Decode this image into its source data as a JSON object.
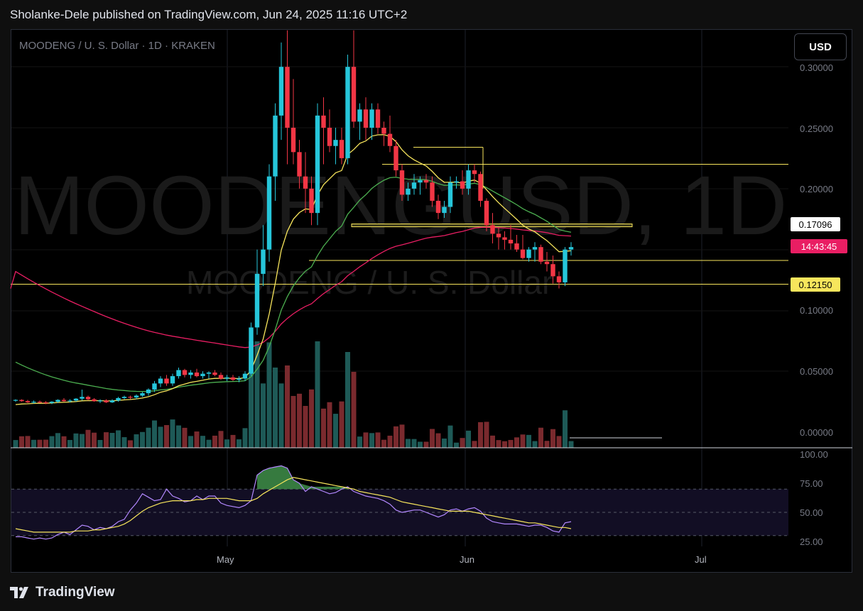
{
  "header": {
    "publish_line": "Sholanke-Dele published on TradingView.com, Jun 24, 2025 11:16 UTC+2"
  },
  "symbol_line": "MOODENG / U. S. Dollar · 1D · KRAKEN",
  "watermark": {
    "big": "MOODENGUSD, 1D",
    "small": "MOODENG / U. S. Dollar"
  },
  "currency_button": "USD",
  "price_axis": {
    "ticks": [
      "0.30000",
      "0.25000",
      "0.20000",
      "0.10000",
      "0.05000",
      "0.00000"
    ]
  },
  "price_labels": {
    "ma_value": "0.17096",
    "countdown": "14:43:45",
    "level": "0.12150"
  },
  "rsi_axis": {
    "ticks": [
      "100.00",
      "75.00",
      "50.00",
      "25.00"
    ]
  },
  "time_axis": {
    "ticks": [
      "May",
      "Jun",
      "Jul"
    ]
  },
  "brand": {
    "name": "TradingView"
  },
  "colors": {
    "up": "#26c6da",
    "down": "#f23645",
    "ma_yellow": "#f7e55c",
    "ma_green": "#4caf50",
    "ma_red": "#e91e63",
    "rsi": "#b388ff",
    "rsi_ma": "#f7e55c",
    "label_white": "#ffffff",
    "label_pink": "#e91e63",
    "label_yellow": "#f7e55c"
  },
  "chart_data": {
    "type": "candlestick",
    "symbol": "MOODENG / U. S. Dollar",
    "interval": "1D",
    "exchange": "KRAKEN",
    "ylim": [
      0,
      0.32
    ],
    "candles": [
      [
        0.026,
        0.027,
        0.025,
        0.0265
      ],
      [
        0.0265,
        0.027,
        0.025,
        0.0255
      ],
      [
        0.0255,
        0.0265,
        0.024,
        0.0245
      ],
      [
        0.0245,
        0.026,
        0.0235,
        0.025
      ],
      [
        0.025,
        0.026,
        0.024,
        0.0245
      ],
      [
        0.0245,
        0.0255,
        0.023,
        0.024
      ],
      [
        0.024,
        0.0255,
        0.023,
        0.025
      ],
      [
        0.025,
        0.027,
        0.024,
        0.0265
      ],
      [
        0.0265,
        0.028,
        0.025,
        0.0255
      ],
      [
        0.0255,
        0.027,
        0.0245,
        0.026
      ],
      [
        0.026,
        0.028,
        0.025,
        0.0275
      ],
      [
        0.0275,
        0.035,
        0.026,
        0.029
      ],
      [
        0.029,
        0.03,
        0.026,
        0.027
      ],
      [
        0.027,
        0.028,
        0.025,
        0.0255
      ],
      [
        0.0255,
        0.027,
        0.024,
        0.026
      ],
      [
        0.026,
        0.027,
        0.024,
        0.0245
      ],
      [
        0.0245,
        0.027,
        0.024,
        0.026
      ],
      [
        0.026,
        0.029,
        0.025,
        0.028
      ],
      [
        0.028,
        0.03,
        0.027,
        0.029
      ],
      [
        0.029,
        0.03,
        0.027,
        0.0285
      ],
      [
        0.0285,
        0.031,
        0.027,
        0.03
      ],
      [
        0.03,
        0.033,
        0.029,
        0.032
      ],
      [
        0.032,
        0.036,
        0.03,
        0.035
      ],
      [
        0.035,
        0.042,
        0.033,
        0.04
      ],
      [
        0.04,
        0.046,
        0.037,
        0.044
      ],
      [
        0.044,
        0.047,
        0.038,
        0.04
      ],
      [
        0.04,
        0.048,
        0.038,
        0.046
      ],
      [
        0.046,
        0.053,
        0.044,
        0.051
      ],
      [
        0.051,
        0.052,
        0.045,
        0.047
      ],
      [
        0.047,
        0.051,
        0.044,
        0.049
      ],
      [
        0.049,
        0.052,
        0.045,
        0.046
      ],
      [
        0.046,
        0.05,
        0.044,
        0.048
      ],
      [
        0.048,
        0.05,
        0.044,
        0.049
      ],
      [
        0.049,
        0.051,
        0.046,
        0.047
      ],
      [
        0.047,
        0.049,
        0.043,
        0.044
      ],
      [
        0.044,
        0.047,
        0.042,
        0.045
      ],
      [
        0.045,
        0.047,
        0.042,
        0.043
      ],
      [
        0.043,
        0.046,
        0.041,
        0.044
      ],
      [
        0.044,
        0.05,
        0.042,
        0.048
      ],
      [
        0.048,
        0.09,
        0.046,
        0.086
      ],
      [
        0.086,
        0.15,
        0.08,
        0.13
      ],
      [
        0.13,
        0.17,
        0.12,
        0.15
      ],
      [
        0.15,
        0.22,
        0.14,
        0.21
      ],
      [
        0.21,
        0.27,
        0.19,
        0.26
      ],
      [
        0.26,
        0.32,
        0.24,
        0.3
      ],
      [
        0.3,
        0.33,
        0.22,
        0.25
      ],
      [
        0.25,
        0.29,
        0.22,
        0.23
      ],
      [
        0.23,
        0.24,
        0.2,
        0.21
      ],
      [
        0.21,
        0.23,
        0.18,
        0.2
      ],
      [
        0.2,
        0.21,
        0.17,
        0.18
      ],
      [
        0.18,
        0.27,
        0.17,
        0.26
      ],
      [
        0.26,
        0.275,
        0.22,
        0.25
      ],
      [
        0.25,
        0.265,
        0.23,
        0.235
      ],
      [
        0.235,
        0.25,
        0.22,
        0.24
      ],
      [
        0.24,
        0.25,
        0.22,
        0.225
      ],
      [
        0.225,
        0.31,
        0.22,
        0.3
      ],
      [
        0.3,
        0.33,
        0.25,
        0.255
      ],
      [
        0.255,
        0.27,
        0.24,
        0.265
      ],
      [
        0.265,
        0.275,
        0.24,
        0.25
      ],
      [
        0.25,
        0.27,
        0.24,
        0.265
      ],
      [
        0.265,
        0.27,
        0.245,
        0.25
      ],
      [
        0.25,
        0.255,
        0.235,
        0.245
      ],
      [
        0.245,
        0.26,
        0.23,
        0.235
      ],
      [
        0.235,
        0.24,
        0.21,
        0.215
      ],
      [
        0.215,
        0.22,
        0.19,
        0.195
      ],
      [
        0.195,
        0.205,
        0.19,
        0.2
      ],
      [
        0.2,
        0.212,
        0.195,
        0.205
      ],
      [
        0.205,
        0.21,
        0.195,
        0.207
      ],
      [
        0.207,
        0.212,
        0.2,
        0.205
      ],
      [
        0.205,
        0.21,
        0.185,
        0.19
      ],
      [
        0.19,
        0.195,
        0.175,
        0.18
      ],
      [
        0.18,
        0.19,
        0.176,
        0.185
      ],
      [
        0.185,
        0.21,
        0.18,
        0.205
      ],
      [
        0.205,
        0.21,
        0.2,
        0.206
      ],
      [
        0.206,
        0.215,
        0.195,
        0.2
      ],
      [
        0.2,
        0.22,
        0.195,
        0.215
      ],
      [
        0.215,
        0.22,
        0.205,
        0.212
      ],
      [
        0.212,
        0.214,
        0.185,
        0.19
      ],
      [
        0.19,
        0.192,
        0.165,
        0.17
      ],
      [
        0.17,
        0.18,
        0.155,
        0.163
      ],
      [
        0.163,
        0.168,
        0.15,
        0.16
      ],
      [
        0.16,
        0.165,
        0.15,
        0.158
      ],
      [
        0.158,
        0.17,
        0.15,
        0.155
      ],
      [
        0.155,
        0.162,
        0.148,
        0.15
      ],
      [
        0.15,
        0.162,
        0.142,
        0.143
      ],
      [
        0.143,
        0.152,
        0.14,
        0.15
      ],
      [
        0.15,
        0.156,
        0.14,
        0.152
      ],
      [
        0.152,
        0.154,
        0.138,
        0.14
      ],
      [
        0.14,
        0.148,
        0.132,
        0.138
      ],
      [
        0.138,
        0.145,
        0.122,
        0.128
      ],
      [
        0.128,
        0.132,
        0.118,
        0.123
      ],
      [
        0.123,
        0.152,
        0.12,
        0.15
      ],
      [
        0.15,
        0.156,
        0.145,
        0.152
      ]
    ],
    "rsi": [
      29,
      29,
      28,
      27,
      28,
      27,
      28,
      31,
      33,
      31,
      35,
      39,
      38,
      35,
      37,
      36,
      38,
      42,
      44,
      52,
      58,
      66,
      63,
      60,
      61,
      70,
      64,
      62,
      59,
      60,
      64,
      61,
      64,
      64,
      58,
      56,
      55,
      54,
      56,
      60,
      82,
      86,
      88,
      89,
      90,
      88,
      78,
      75,
      68,
      72,
      70,
      68,
      66,
      67,
      70,
      72,
      68,
      66,
      64,
      63,
      62,
      60,
      57,
      52,
      50,
      51,
      52,
      52,
      50,
      48,
      46,
      48,
      52,
      53,
      51,
      53,
      54,
      51,
      45,
      42,
      41,
      40,
      40,
      40,
      39,
      38,
      39,
      39,
      37,
      34,
      33,
      41,
      42
    ],
    "rsi_ma": [
      36,
      35,
      34,
      33,
      33,
      33,
      33,
      33,
      33,
      33,
      34,
      34,
      34,
      35,
      35,
      36,
      37,
      38,
      40,
      43,
      47,
      51,
      54,
      56,
      58,
      59,
      60,
      60,
      60,
      60,
      61,
      61,
      62,
      62,
      62,
      62,
      61,
      60,
      60,
      60,
      62,
      66,
      69,
      72,
      75,
      78,
      80,
      79,
      78,
      77,
      76,
      75,
      74,
      73,
      72,
      71,
      70,
      68,
      67,
      66,
      65,
      64,
      63,
      61,
      59,
      58,
      57,
      56,
      55,
      54,
      53,
      52,
      51,
      51,
      51,
      51,
      50,
      49,
      48,
      47,
      46,
      45,
      44,
      43,
      42,
      41,
      41,
      40,
      39,
      38,
      37,
      37,
      36
    ]
  }
}
